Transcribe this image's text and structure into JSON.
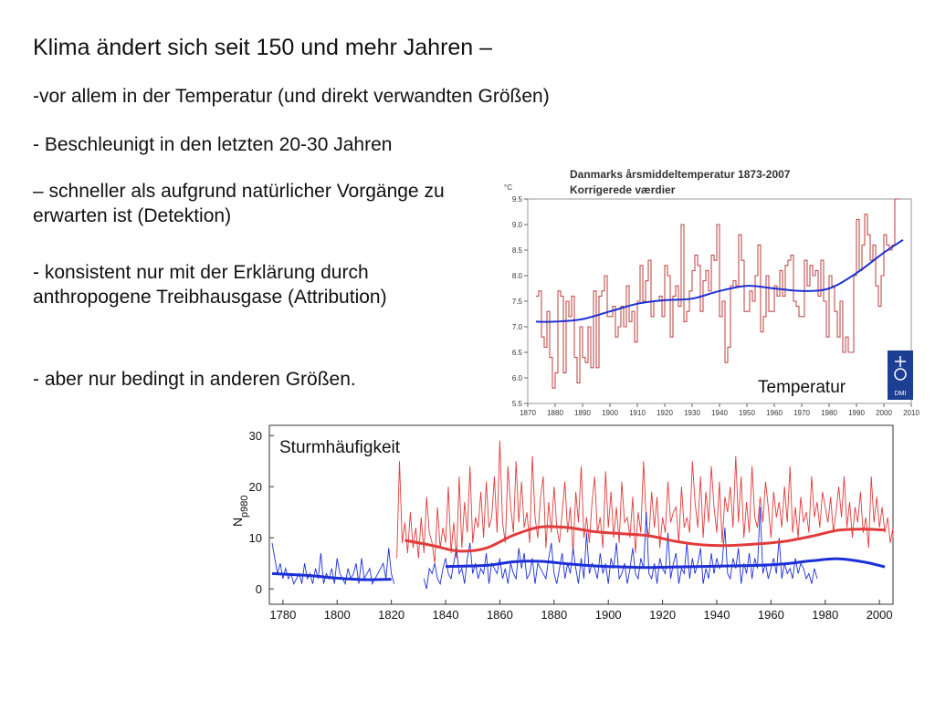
{
  "slide": {
    "title": "Klima ändert sich seit 150 und mehr Jahren –",
    "bullets": [
      "-vor allem in der Temperatur (und direkt verwandten Größen)",
      "- Beschleunigt in den letzten 20-30 Jahren",
      "– schneller als aufgrund  natürlicher Vorgänge zu erwarten ist (Detektion)",
      "- konsistent nur mit der Erklärung durch anthropogene Treibhausgase (Attribution)",
      "- aber nur bedingt in anderen Größen."
    ]
  },
  "colors": {
    "red": "#e23b3b",
    "darkred": "#c0504d",
    "blue": "#1c2fd6",
    "brown": "#b5463f"
  },
  "chart_data": [
    {
      "type": "line",
      "title": "Danmarks årsmiddeltemperatur 1873-2007",
      "subtitle": "Korrigerede værdier",
      "ylabel": "°C",
      "annotation": "Temperatur",
      "logo_text": "DMI",
      "xlim": [
        1870,
        2010
      ],
      "ylim": [
        5.5,
        9.5
      ],
      "xticks": [
        "1870",
        "1880",
        "1890",
        "1900",
        "1910",
        "1920",
        "1930",
        "1940",
        "1950",
        "1960",
        "1970",
        "1980",
        "1990",
        "2000",
        "2010"
      ],
      "yticks": [
        "5.5",
        "6.0",
        "6.5",
        "7.0",
        "7.5",
        "8.0",
        "8.5",
        "9.0",
        "9.5"
      ],
      "series": [
        {
          "style": "step",
          "color": "#c0504d",
          "x0": 1873,
          "values": [
            7.6,
            7.7,
            6.8,
            6.6,
            7.3,
            6.4,
            5.8,
            6.1,
            7.7,
            7.6,
            6.1,
            7.5,
            7.2,
            7.6,
            6.4,
            5.9,
            7.0,
            6.4,
            6.3,
            7.0,
            6.2,
            7.7,
            6.2,
            7.6,
            7.7,
            8.0,
            7.2,
            7.2,
            7.4,
            6.8,
            7.0,
            7.4,
            7.0,
            7.8,
            7.1,
            7.3,
            6.7,
            7.5,
            8.2,
            7.5,
            7.9,
            8.3,
            7.2,
            7.5,
            7.5,
            7.6,
            7.2,
            8.2,
            8.0,
            6.8,
            7.6,
            7.8,
            7.4,
            9.0,
            7.1,
            7.3,
            7.7,
            8.1,
            8.4,
            8.2,
            7.3,
            7.9,
            8.1,
            7.7,
            8.4,
            8.3,
            9.0,
            7.2,
            7.5,
            6.3,
            6.6,
            7.8,
            7.9,
            7.8,
            8.8,
            8.3,
            7.3,
            7.3,
            7.7,
            7.5,
            8.0,
            8.6,
            6.9,
            7.2,
            8.0,
            7.3,
            7.3,
            7.8,
            7.6,
            8.1,
            7.6,
            8.2,
            8.3,
            8.4,
            7.5,
            7.4,
            7.2,
            7.2,
            8.3,
            7.8,
            8.2,
            8.0,
            8.1,
            7.6,
            8.3,
            7.5,
            6.8,
            8.0,
            7.8,
            7.3,
            6.8,
            7.5,
            6.5,
            6.8,
            6.5,
            6.5,
            8.0,
            9.1,
            8.1,
            8.6,
            9.2,
            8.8,
            8.3,
            8.6,
            7.8,
            7.4,
            8.0,
            8.8,
            8.6,
            8.5,
            8.6,
            9.5,
            9.5
          ]
        },
        {
          "style": "smooth",
          "color": "#1c2fd6",
          "x": [
            1873,
            1880,
            1890,
            1900,
            1910,
            1920,
            1930,
            1940,
            1950,
            1960,
            1970,
            1980,
            1990,
            2000,
            2007
          ],
          "values": [
            7.1,
            7.1,
            7.15,
            7.3,
            7.45,
            7.52,
            7.55,
            7.7,
            7.8,
            7.75,
            7.7,
            7.75,
            8.05,
            8.45,
            8.7
          ]
        }
      ]
    },
    {
      "type": "line",
      "title": "",
      "ylabel": "N",
      "ylabel_subscript": "p980",
      "annotation": "Sturmhäufigkeit",
      "xlim": [
        1775,
        2005
      ],
      "ylim": [
        -3,
        32
      ],
      "xticks": [
        "1780",
        "1800",
        "1820",
        "1840",
        "1860",
        "1880",
        "1900",
        "1920",
        "1940",
        "1960",
        "1980",
        "2000"
      ],
      "yticks": [
        "0",
        "10",
        "20",
        "30"
      ],
      "series": [
        {
          "style": "raw",
          "color": "#e23b3b",
          "x0": 1822,
          "values": [
            6,
            25,
            9,
            13,
            7,
            15,
            8,
            12,
            6,
            14,
            7,
            18,
            11,
            9,
            5,
            16,
            8,
            12,
            9,
            20,
            7,
            13,
            6,
            22,
            8,
            17,
            11,
            24,
            9,
            14,
            12,
            19,
            10,
            21,
            12,
            14,
            22,
            11,
            29,
            13,
            9,
            24,
            16,
            11,
            25,
            13,
            21,
            12,
            15,
            9,
            26,
            14,
            10,
            18,
            22,
            8,
            17,
            11,
            20,
            12,
            9,
            15,
            21,
            11,
            16,
            7,
            19,
            13,
            24,
            10,
            14,
            9,
            17,
            22,
            11,
            14,
            8,
            23,
            12,
            19,
            10,
            16,
            9,
            21,
            13,
            14,
            10,
            18,
            7,
            15,
            11,
            25,
            13,
            10,
            19,
            12,
            18,
            8,
            14,
            11,
            21,
            13,
            15,
            16,
            9,
            20,
            12,
            14,
            11,
            25,
            17,
            12,
            22,
            10,
            19,
            13,
            24,
            16,
            11,
            21,
            9,
            18,
            15,
            20,
            12,
            26,
            13,
            22,
            10,
            17,
            11,
            24,
            14,
            12,
            18,
            13,
            21,
            16,
            10,
            19,
            14,
            17,
            12,
            20,
            13,
            24,
            11,
            16,
            10,
            18,
            13,
            15,
            11,
            22,
            14,
            17,
            12,
            19,
            16,
            13,
            18,
            11,
            15,
            20,
            14,
            22,
            12,
            17,
            10,
            16,
            13,
            19,
            11,
            14,
            8,
            22,
            13,
            18,
            12,
            16,
            11,
            14,
            9,
            12,
            10
          ]
        },
        {
          "style": "raw",
          "color": "#1c2fd6",
          "x0": 1776,
          "segments": [
            {
              "x0": 1776,
              "values": [
                9,
                6,
                3,
                5,
                2,
                4,
                2,
                3,
                1,
                2,
                3,
                1,
                5,
                2,
                3,
                1,
                4,
                2,
                7,
                1,
                3,
                2,
                4,
                1,
                6,
                3,
                2,
                1,
                4,
                2,
                3,
                5,
                1,
                6,
                2,
                3,
                4,
                1,
                2,
                3,
                4,
                5,
                2,
                8,
                3,
                1
              ]
            },
            {
              "x0": 1832,
              "values": [
                2,
                0,
                4,
                3,
                5,
                2,
                1,
                4,
                6,
                3,
                2,
                5,
                8,
                3,
                4,
                1,
                6,
                9,
                3,
                5,
                2,
                4,
                3,
                7,
                1,
                5,
                4,
                3,
                6,
                2,
                4,
                1,
                5,
                3,
                2,
                8,
                4,
                7,
                2,
                3,
                6,
                1,
                5,
                4,
                3,
                2,
                6,
                9,
                3,
                1,
                4,
                7,
                2,
                5,
                3,
                8,
                4,
                1,
                6,
                2,
                11,
                3,
                5,
                4,
                2,
                7,
                3,
                5,
                1,
                6,
                4,
                9,
                2,
                3,
                5,
                1,
                4,
                8,
                3,
                2,
                6,
                4,
                15,
                3,
                2,
                5,
                1,
                6,
                4,
                3,
                11,
                2,
                5,
                7,
                1,
                4,
                3,
                9,
                2,
                6,
                3,
                5,
                8,
                1,
                4,
                2,
                7,
                3,
                6,
                4,
                5,
                12,
                3,
                2,
                6,
                4,
                8,
                1,
                5,
                3,
                7,
                2,
                6,
                4,
                16,
                3,
                5,
                2,
                4,
                6,
                3,
                10,
                2,
                5,
                3,
                4,
                2,
                6,
                3,
                5,
                4,
                2,
                3,
                1,
                4,
                2
              ]
            }
          ]
        },
        {
          "style": "smooth",
          "color": "#e23b3b",
          "x": [
            1825,
            1835,
            1845,
            1855,
            1865,
            1875,
            1885,
            1895,
            1905,
            1915,
            1925,
            1935,
            1945,
            1955,
            1965,
            1975,
            1985,
            1995,
            2002
          ],
          "values": [
            9.5,
            8.5,
            7.4,
            8.0,
            10.5,
            12.1,
            12.0,
            11.2,
            10.8,
            10.4,
            9.3,
            8.6,
            8.5,
            8.8,
            9.3,
            10.3,
            11.5,
            11.7,
            11.5
          ]
        },
        {
          "style": "smooth",
          "color": "#1c2fd6",
          "x": [
            1776,
            1790,
            1800,
            1810,
            1820
          ],
          "values": [
            3.0,
            2.6,
            2.1,
            1.8,
            1.9
          ]
        },
        {
          "style": "smooth",
          "color": "#1c2fd6",
          "x": [
            1840,
            1855,
            1865,
            1875,
            1885,
            1895,
            1905,
            1915,
            1925,
            1935,
            1945,
            1955,
            1965,
            1975,
            1985,
            1995,
            2002
          ],
          "values": [
            4.4,
            4.6,
            5.3,
            5.4,
            4.9,
            4.5,
            4.3,
            4.2,
            4.3,
            4.4,
            4.5,
            4.6,
            4.9,
            5.5,
            5.9,
            5.2,
            4.3
          ]
        }
      ]
    }
  ]
}
